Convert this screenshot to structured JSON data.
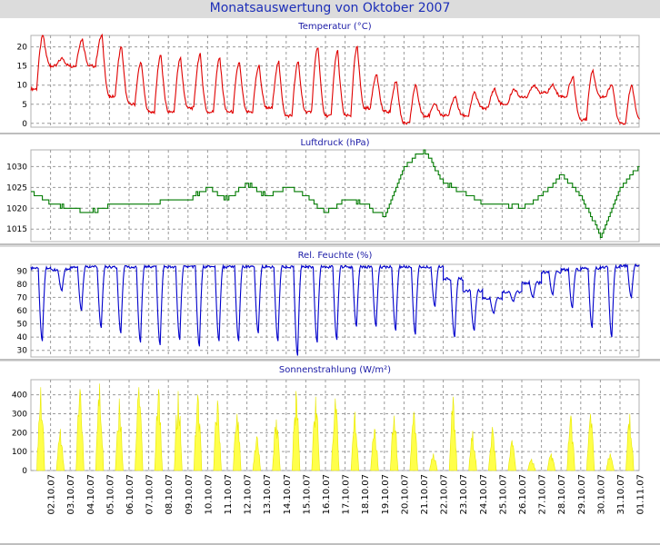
{
  "page": {
    "title": "Monatsauswertung von Oktober 2007"
  },
  "colors": {
    "background": "#dcdcdc",
    "title": "#1d2fb8",
    "temperature": "#e00000",
    "pressure": "#007a00",
    "humidity": "#0000cc",
    "radiation": "#ffff4a",
    "grid": "#9a9a9a"
  },
  "x_axis": {
    "tick_labels": [
      "02.10.07",
      "03.10.07",
      "04.10.07",
      "05.10.07",
      "06.10.07",
      "07.10.07",
      "08.10.07",
      "09.10.07",
      "10.10.07",
      "11.10.07",
      "12.10.07",
      "13.10.07",
      "14.10.07",
      "15.10.07",
      "16.10.07",
      "17.10.07",
      "18.10.07",
      "19.10.07",
      "20.10.07",
      "21.10.07",
      "22.10.07",
      "23.10.07",
      "24.10.07",
      "25.10.07",
      "26.10.07",
      "27.10.07",
      "28.10.07",
      "29.10.07",
      "30.10.07",
      "31.10.07",
      "01.11.07"
    ]
  },
  "chart_data": [
    {
      "type": "line",
      "title": "Temperatur (°C)",
      "ylim": [
        -1,
        23
      ],
      "yticks": [
        0,
        5,
        10,
        15,
        20
      ],
      "grid": true,
      "x": [
        1,
        2,
        3,
        4,
        5,
        6,
        7,
        8,
        9,
        10,
        11,
        12,
        13,
        14,
        15,
        16,
        17,
        18,
        19,
        20,
        21,
        22,
        23,
        24,
        25,
        26,
        27,
        28,
        29,
        30,
        31
      ],
      "daily_min": [
        9,
        15,
        15,
        15,
        7,
        5,
        3,
        3,
        4,
        3,
        3,
        3,
        4,
        2,
        3,
        2,
        2,
        4,
        3,
        0,
        2,
        2,
        2,
        4,
        5,
        7,
        8,
        7,
        1,
        7,
        0
      ],
      "daily_max": [
        23,
        17,
        22,
        23,
        20,
        16,
        18,
        17,
        18,
        17,
        16,
        15,
        16,
        16,
        20,
        19,
        20,
        13,
        11,
        10,
        5,
        7,
        8,
        9,
        9,
        10,
        10,
        12,
        14,
        10,
        10
      ],
      "end_value": 1
    },
    {
      "type": "line",
      "title": "Luftdruck (hPa)",
      "ylim": [
        1012,
        1034
      ],
      "yticks": [
        1015,
        1020,
        1025,
        1030
      ],
      "grid": true,
      "x": [
        0,
        1,
        2,
        3,
        4,
        5,
        6,
        7,
        8,
        9,
        10,
        11,
        12,
        13,
        14,
        15,
        16,
        17,
        18,
        19,
        20,
        21,
        22,
        23,
        24,
        25,
        26,
        27,
        28,
        29,
        30,
        31
      ],
      "values": [
        1024,
        1021,
        1020,
        1019,
        1021,
        1021,
        1021,
        1022,
        1022,
        1025,
        1022,
        1026,
        1023,
        1025,
        1023,
        1019,
        1022,
        1021,
        1018,
        1030,
        1034,
        1026,
        1024,
        1021,
        1021,
        1020,
        1023,
        1028,
        1023,
        1013,
        1025,
        1030
      ]
    },
    {
      "type": "line",
      "title": "Rel. Feuchte (%)",
      "ylim": [
        25,
        95
      ],
      "yticks": [
        30,
        40,
        50,
        60,
        70,
        80,
        90
      ],
      "grid": true,
      "x": [
        1,
        2,
        3,
        4,
        5,
        6,
        7,
        8,
        9,
        10,
        11,
        12,
        13,
        14,
        15,
        16,
        17,
        18,
        19,
        20,
        21,
        22,
        23,
        24,
        25,
        26,
        27,
        28,
        29,
        30,
        31
      ],
      "daily_max": [
        93,
        92,
        94,
        94,
        94,
        94,
        94,
        94,
        94,
        94,
        94,
        94,
        94,
        94,
        94,
        94,
        94,
        94,
        94,
        94,
        94,
        85,
        76,
        70,
        75,
        82,
        90,
        92,
        93,
        94,
        95
      ],
      "daily_min": [
        37,
        75,
        60,
        47,
        43,
        36,
        34,
        38,
        33,
        37,
        37,
        43,
        37,
        26,
        36,
        38,
        48,
        48,
        45,
        42,
        63,
        40,
        45,
        58,
        67,
        70,
        72,
        62,
        47,
        40,
        70
      ]
    },
    {
      "type": "area",
      "title": "Sonnenstrahlung (W/m²)",
      "ylim": [
        0,
        480
      ],
      "yticks": [
        0,
        100,
        200,
        300,
        400
      ],
      "grid": true,
      "x": [
        1,
        2,
        3,
        4,
        5,
        6,
        7,
        8,
        9,
        10,
        11,
        12,
        13,
        14,
        15,
        16,
        17,
        18,
        19,
        20,
        21,
        22,
        23,
        24,
        25,
        26,
        27,
        28,
        29,
        30,
        31
      ],
      "daily_peak": [
        440,
        220,
        430,
        460,
        380,
        440,
        430,
        420,
        400,
        370,
        300,
        180,
        270,
        420,
        390,
        380,
        310,
        220,
        290,
        310,
        90,
        390,
        210,
        230,
        160,
        60,
        90,
        290,
        300,
        90,
        300
      ]
    }
  ]
}
